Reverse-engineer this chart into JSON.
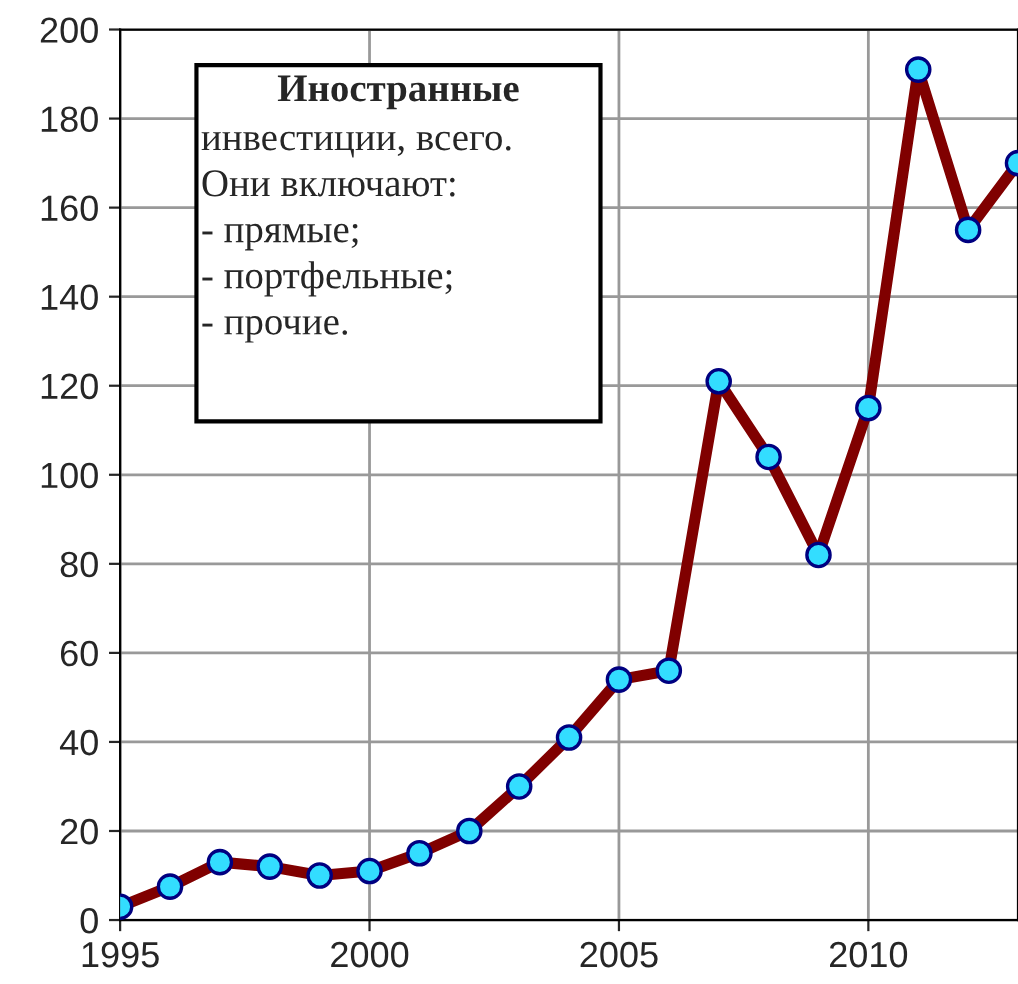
{
  "chart_data": {
    "type": "line",
    "annotations": [
      "Иностранные",
      "инвестиции, всего.\nОни включают:\n- прямые;\n- портфельные;\n- прочие."
    ],
    "x": [
      1995,
      1996,
      1997,
      1998,
      1999,
      2000,
      2001,
      2002,
      2003,
      2004,
      2005,
      2006,
      2007,
      2008,
      2009,
      2010,
      2011,
      2012,
      2013
    ],
    "series": [
      {
        "color": "#800000",
        "values": [
          3,
          7.5,
          13,
          12,
          10,
          11,
          15,
          20,
          30,
          41,
          54,
          56,
          121,
          104,
          82,
          115,
          191,
          155,
          170
        ]
      }
    ],
    "marker": "circle",
    "xlim": [
      1995,
      2013
    ],
    "xticks": [
      1995,
      2000,
      2005,
      2010
    ],
    "ylim": [
      0,
      200
    ],
    "yticks": [
      0,
      20,
      40,
      60,
      80,
      100,
      120,
      140,
      160,
      180,
      200
    ],
    "grid": true
  }
}
